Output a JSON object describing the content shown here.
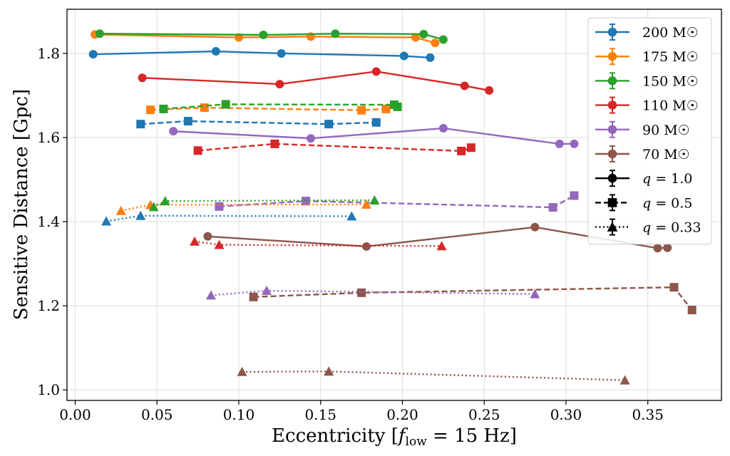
{
  "chart_data": {
    "type": "scatter",
    "xlabel": "Eccentricity [f_low = 15 Hz]",
    "xlabel_parts": {
      "main": "Eccentricity [",
      "f": "f",
      "sub": "low",
      "rest": " = 15 Hz]"
    },
    "ylabel": "Sensitive Distance [Gpc]",
    "xlim": [
      -0.005,
      0.395
    ],
    "ylim": [
      0.975,
      1.905
    ],
    "xticks": [
      0.0,
      0.05,
      0.1,
      0.15,
      0.2,
      0.25,
      0.3,
      0.35
    ],
    "xtick_labels": [
      "0.00",
      "0.05",
      "0.10",
      "0.15",
      "0.20",
      "0.25",
      "0.30",
      "0.35"
    ],
    "yticks": [
      1.0,
      1.2,
      1.4,
      1.6,
      1.8
    ],
    "ytick_labels": [
      "1.0",
      "1.2",
      "1.4",
      "1.6",
      "1.8"
    ],
    "grid": true,
    "legend_position": "top-right",
    "colors": {
      "200": "#1f77b4",
      "175": "#ff7f0e",
      "150": "#2ca02c",
      "110": "#d62728",
      "90": "#9467bd",
      "70": "#8c564b",
      "black": "#000000"
    },
    "legend": {
      "mass_entries": [
        {
          "label": "200 M☉",
          "color_key": "200"
        },
        {
          "label": "175 M☉",
          "color_key": "175"
        },
        {
          "label": "150 M☉",
          "color_key": "150"
        },
        {
          "label": "110 M☉",
          "color_key": "110"
        },
        {
          "label": "90 M☉",
          "color_key": "90"
        },
        {
          "label": "70 M☉",
          "color_key": "70"
        }
      ],
      "ratio_entries": [
        {
          "label": "q = 1.0",
          "q_text": "q",
          "value_text": " = 1.0",
          "marker": "circle",
          "dash": "solid"
        },
        {
          "label": "q = 0.5",
          "q_text": "q",
          "value_text": " = 0.5",
          "marker": "square",
          "dash": "dashed"
        },
        {
          "label": "q = 0.33",
          "q_text": "q",
          "value_text": " = 0.33",
          "marker": "triangle",
          "dash": "dotted"
        }
      ]
    },
    "series": [
      {
        "name": "200 M☉, q = 1.0",
        "color_key": "200",
        "marker": "circle",
        "dash": "solid",
        "x": [
          0.011,
          0.086,
          0.126,
          0.201,
          0.217
        ],
        "y": [
          1.798,
          1.805,
          1.8,
          1.794,
          1.79
        ]
      },
      {
        "name": "175 M☉, q = 1.0",
        "color_key": "175",
        "marker": "circle",
        "dash": "solid",
        "x": [
          0.012,
          0.1,
          0.144,
          0.208,
          0.22
        ],
        "y": [
          1.845,
          1.838,
          1.84,
          1.838,
          1.825
        ]
      },
      {
        "name": "150 M☉, q = 1.0",
        "color_key": "150",
        "marker": "circle",
        "dash": "solid",
        "x": [
          0.015,
          0.115,
          0.159,
          0.213,
          0.225
        ],
        "y": [
          1.847,
          1.844,
          1.847,
          1.846,
          1.833
        ]
      },
      {
        "name": "110 M☉, q = 1.0",
        "color_key": "110",
        "marker": "circle",
        "dash": "solid",
        "x": [
          0.041,
          0.125,
          0.184,
          0.238,
          0.253
        ],
        "y": [
          1.742,
          1.727,
          1.757,
          1.723,
          1.712
        ]
      },
      {
        "name": "90 M☉, q = 1.0",
        "color_key": "90",
        "marker": "circle",
        "dash": "solid",
        "x": [
          0.06,
          0.144,
          0.225,
          0.296,
          0.305
        ],
        "y": [
          1.615,
          1.598,
          1.622,
          1.585,
          1.585
        ]
      },
      {
        "name": "70 M☉, q = 1.0",
        "color_key": "70",
        "marker": "circle",
        "dash": "solid",
        "x": [
          0.081,
          0.178,
          0.281,
          0.356,
          0.362
        ],
        "y": [
          1.365,
          1.341,
          1.387,
          1.337,
          1.338
        ]
      },
      {
        "name": "200 M☉, q = 0.5",
        "color_key": "200",
        "marker": "square",
        "dash": "dashed",
        "x": [
          0.04,
          0.069,
          0.155,
          0.184
        ],
        "y": [
          1.632,
          1.639,
          1.632,
          1.636
        ]
      },
      {
        "name": "175 M☉, q = 0.5",
        "color_key": "175",
        "marker": "square",
        "dash": "dashed",
        "x": [
          0.046,
          0.079,
          0.175,
          0.19
        ],
        "y": [
          1.666,
          1.671,
          1.665,
          1.668
        ]
      },
      {
        "name": "150 M☉, q = 0.5",
        "color_key": "150",
        "marker": "square",
        "dash": "dashed",
        "x": [
          0.054,
          0.092,
          0.195,
          0.197
        ],
        "y": [
          1.668,
          1.679,
          1.678,
          1.673
        ]
      },
      {
        "name": "110 M☉, q = 0.5",
        "color_key": "110",
        "marker": "square",
        "dash": "dashed",
        "x": [
          0.075,
          0.122,
          0.236,
          0.242
        ],
        "y": [
          1.569,
          1.585,
          1.568,
          1.576
        ]
      },
      {
        "name": "90 M☉, q = 0.5",
        "color_key": "90",
        "marker": "square",
        "dash": "dashed",
        "x": [
          0.088,
          0.141,
          0.292,
          0.305
        ],
        "y": [
          1.436,
          1.449,
          1.434,
          1.462
        ]
      },
      {
        "name": "70 M☉, q = 0.5",
        "color_key": "70",
        "marker": "square",
        "dash": "dashed",
        "x": [
          0.109,
          0.175,
          0.366,
          0.377
        ],
        "y": [
          1.221,
          1.231,
          1.244,
          1.19
        ]
      },
      {
        "name": "200 M☉, q = 0.33",
        "color_key": "200",
        "marker": "triangle",
        "dash": "dotted",
        "x": [
          0.019,
          0.04,
          0.169
        ],
        "y": [
          1.401,
          1.414,
          1.413
        ]
      },
      {
        "name": "175 M☉, q = 0.33",
        "color_key": "175",
        "marker": "triangle",
        "dash": "dotted",
        "x": [
          0.028,
          0.046,
          0.178
        ],
        "y": [
          1.426,
          1.44,
          1.441
        ]
      },
      {
        "name": "150 M☉, q = 0.33",
        "color_key": "150",
        "marker": "triangle",
        "dash": "dotted",
        "x": [
          0.048,
          0.055,
          0.183
        ],
        "y": [
          1.435,
          1.449,
          1.451
        ]
      },
      {
        "name": "110 M☉, q = 0.33",
        "color_key": "110",
        "marker": "triangle",
        "dash": "dotted",
        "x": [
          0.073,
          0.088,
          0.224
        ],
        "y": [
          1.353,
          1.345,
          1.342
        ]
      },
      {
        "name": "90 M☉, q = 0.33",
        "color_key": "90",
        "marker": "triangle",
        "dash": "dotted",
        "x": [
          0.083,
          0.117,
          0.281
        ],
        "y": [
          1.225,
          1.236,
          1.228
        ]
      },
      {
        "name": "70 M☉, q = 0.33",
        "color_key": "70",
        "marker": "triangle",
        "dash": "dotted",
        "x": [
          0.102,
          0.155,
          0.336
        ],
        "y": [
          1.043,
          1.044,
          1.023
        ]
      }
    ]
  }
}
